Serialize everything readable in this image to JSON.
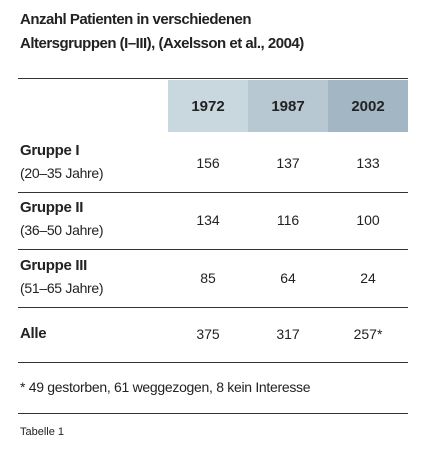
{
  "header": {
    "title_lines": [
      "Anzahl Patienten in verschiedenen",
      "Altersgruppen (I–III), (Axelsson et al., 2004)"
    ]
  },
  "table": {
    "columns": [
      "1972",
      "1987",
      "2002"
    ],
    "rows": [
      {
        "label": "Gruppe I",
        "sublabel": "(20–35 Jahre)",
        "values": [
          156,
          137,
          133
        ]
      },
      {
        "label": "Gruppe II",
        "sublabel": "(36–50 Jahre)",
        "values": [
          134,
          116,
          100
        ]
      },
      {
        "label": "Gruppe III",
        "sublabel": "(51–65 Jahre)",
        "values": [
          85,
          64,
          24
        ]
      },
      {
        "label": "Alle",
        "values": [
          375,
          317,
          "257*"
        ]
      }
    ]
  },
  "footnote": "* 49 gestorben, 61 weggezogen, 8 kein Interesse",
  "caption": "Tabelle 1"
}
